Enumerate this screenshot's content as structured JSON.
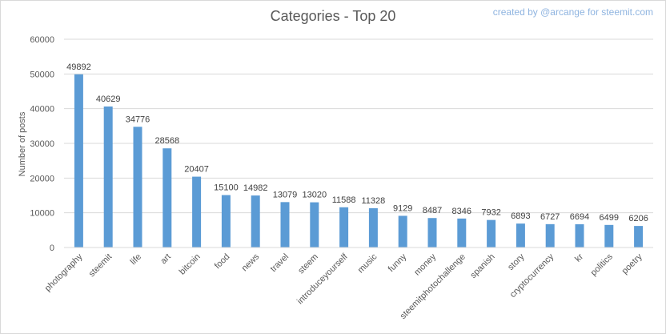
{
  "credit": "created by @arcange for steemit.com",
  "chart_data": {
    "type": "bar",
    "title": "Categories - Top 20",
    "xlabel": "",
    "ylabel": "Number of posts",
    "ylim": [
      0,
      60000
    ],
    "yticks": [
      0,
      10000,
      20000,
      30000,
      40000,
      50000,
      60000
    ],
    "grid": true,
    "legend": "none",
    "bar_color": "#5b9bd5",
    "categories": [
      "photography",
      "steemit",
      "life",
      "art",
      "bitcoin",
      "food",
      "news",
      "travel",
      "steem",
      "introduceyourself",
      "music",
      "funny",
      "money",
      "steemitphotochallenge",
      "spanish",
      "story",
      "cryptocurrency",
      "kr",
      "politics",
      "poetry"
    ],
    "values": [
      49892,
      40629,
      34776,
      28568,
      20407,
      15100,
      14982,
      13079,
      13020,
      11588,
      11328,
      9129,
      8487,
      8346,
      7932,
      6893,
      6727,
      6694,
      6499,
      6206
    ]
  }
}
